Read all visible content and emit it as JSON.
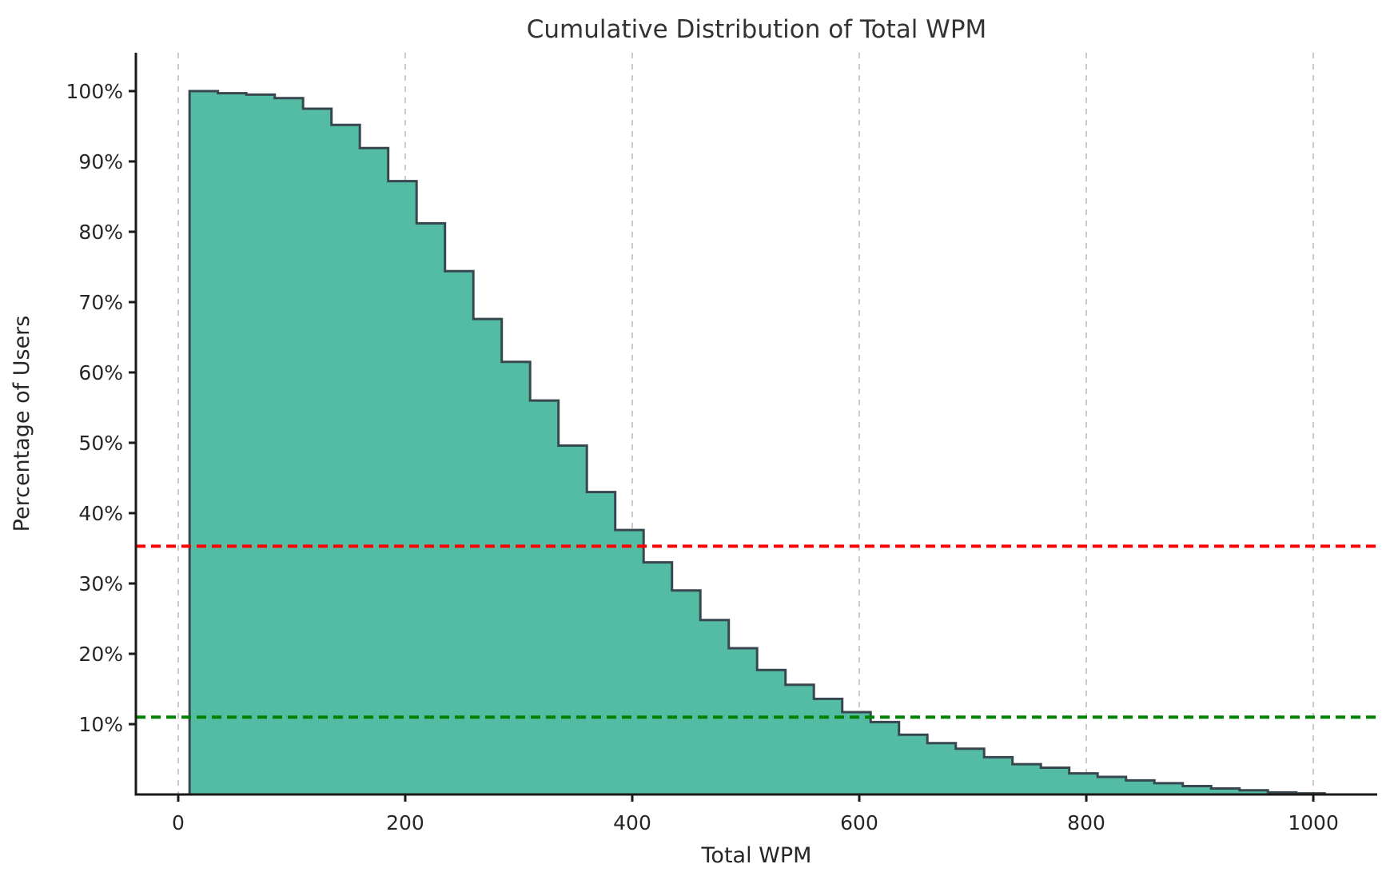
{
  "figure": {
    "title": "Cumulative Distribution of Total WPM",
    "xlabel": "Total WPM",
    "ylabel": "Percentage of Users"
  },
  "chart_data": {
    "type": "area",
    "subtype": "cumulative-step-histogram-survival",
    "title": "Cumulative Distribution of Total WPM",
    "xlabel": "Total WPM",
    "ylabel": "Percentage of Users",
    "grid": "vertical-dashed-only",
    "legend": "none",
    "xlim": [
      -37.3,
      1056.3
    ],
    "ylim": [
      0,
      105.45
    ],
    "bin_start": 10,
    "bin_width": 25,
    "bin_edges": [
      10,
      35,
      60,
      85,
      110,
      135,
      160,
      185,
      210,
      235,
      260,
      285,
      310,
      335,
      360,
      385,
      410,
      435,
      460,
      485,
      510,
      535,
      560,
      585,
      610,
      635,
      660,
      685,
      710,
      735,
      760,
      785,
      810,
      835,
      860,
      885,
      910,
      935,
      960,
      985,
      1010
    ],
    "values_pct": [
      100.0,
      99.7,
      99.5,
      99.0,
      97.5,
      95.2,
      91.9,
      87.2,
      81.2,
      74.4,
      67.6,
      61.5,
      56.0,
      49.6,
      43.0,
      37.6,
      33.0,
      29.0,
      24.8,
      20.8,
      17.7,
      15.6,
      13.6,
      11.7,
      10.3,
      8.5,
      7.3,
      6.5,
      5.3,
      4.3,
      3.8,
      3.0,
      2.5,
      2.0,
      1.6,
      1.2,
      0.85,
      0.6,
      0.3,
      0.15
    ],
    "x_ticks": [
      0,
      200,
      400,
      600,
      800,
      1000
    ],
    "x_tick_labels": [
      "0",
      "200",
      "400",
      "600",
      "800",
      "1000"
    ],
    "y_ticks": [
      10,
      20,
      30,
      40,
      50,
      60,
      70,
      80,
      90,
      100
    ],
    "y_tick_labels": [
      "10%",
      "20%",
      "30%",
      "40%",
      "50%",
      "60%",
      "70%",
      "80%",
      "90%",
      "100%"
    ],
    "reference_lines": [
      {
        "name": "red-reference-line",
        "orientation": "horizontal",
        "value_pct": 35.3,
        "color": "#ff0000",
        "style": "dashed"
      },
      {
        "name": "green-reference-line",
        "orientation": "horizontal",
        "value_pct": 11.0,
        "color": "#008000",
        "style": "dashed"
      }
    ],
    "colors": {
      "fill": "#55bca4",
      "edge": "#37474f",
      "gridline": "#c9c9c9",
      "spine": "#1a1a1a",
      "text": "#262626",
      "red_line": "#ff0000",
      "green_line": "#008000",
      "background": "#ffffff"
    }
  }
}
